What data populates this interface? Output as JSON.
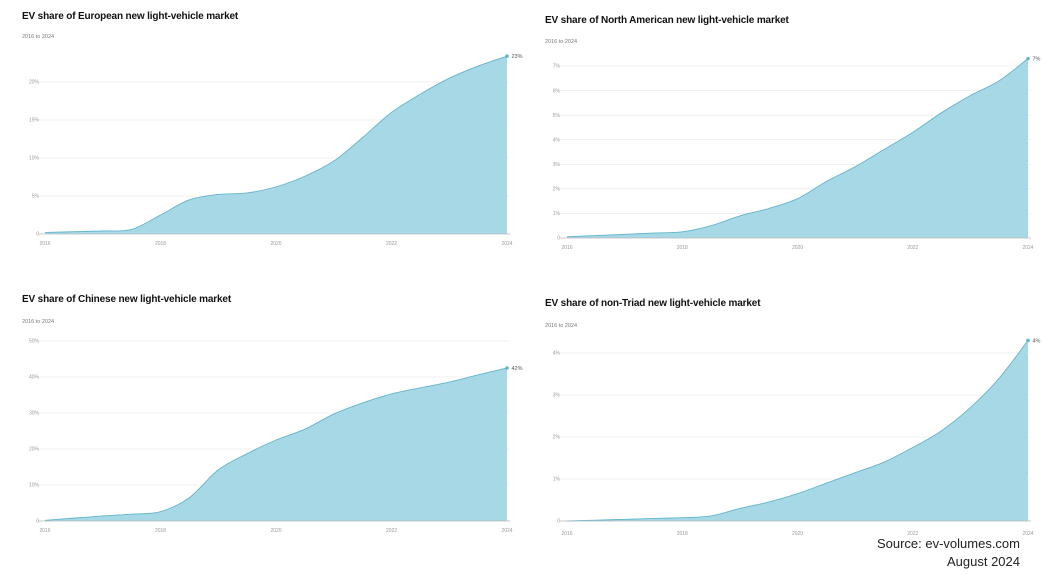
{
  "colors": {
    "area": "#a7d8e6",
    "line": "#62b5cd",
    "grid": "#e6e6e6",
    "axis": "#b9b9b9"
  },
  "chart_data": [
    {
      "type": "area",
      "title": "EV share of European new light-vehicle market",
      "subtitle": "2016 to 2024",
      "xlim": [
        2016,
        2024
      ],
      "x_ticks": [
        "2016",
        "2018",
        "2020",
        "2022",
        "2024"
      ],
      "y_ticks": [
        0,
        5,
        10,
        15,
        20
      ],
      "y_tick_labels": [
        "0",
        "5%",
        "10%",
        "15%",
        "20%"
      ],
      "ylim": [
        0,
        20
      ],
      "grid": true,
      "end_label": "23%",
      "series": [
        {
          "x": [
            2016,
            2016.5,
            2017,
            2017.5,
            2018,
            2018.5,
            2019,
            2019.5,
            2020,
            2020.5,
            2021,
            2021.5,
            2022,
            2022.5,
            2023,
            2023.5,
            2024
          ],
          "y": [
            0.2,
            0.3,
            0.4,
            0.6,
            2.5,
            4.5,
            5.2,
            5.4,
            6.2,
            7.6,
            9.6,
            12.7,
            16.0,
            18.4,
            20.5,
            22.1,
            23.4
          ]
        }
      ]
    },
    {
      "type": "area",
      "title": "EV share of North American new light-vehicle market",
      "subtitle": "2016 to 2024",
      "xlim": [
        2016,
        2024
      ],
      "x_ticks": [
        "2016",
        "2018",
        "2020",
        "2022",
        "2024"
      ],
      "y_ticks": [
        0,
        1,
        2,
        3,
        4,
        5,
        6,
        7
      ],
      "y_tick_labels": [
        "0",
        "1%",
        "2%",
        "3%",
        "4%",
        "5%",
        "6%",
        "7%"
      ],
      "ylim": [
        0,
        7
      ],
      "grid": true,
      "end_label": "7%",
      "series": [
        {
          "x": [
            2016,
            2016.5,
            2017,
            2017.5,
            2018,
            2018.5,
            2019,
            2019.5,
            2020,
            2020.5,
            2021,
            2021.5,
            2022,
            2022.5,
            2023,
            2023.5,
            2024
          ],
          "y": [
            0.05,
            0.1,
            0.15,
            0.2,
            0.25,
            0.5,
            0.9,
            1.2,
            1.6,
            2.3,
            2.9,
            3.6,
            4.3,
            5.1,
            5.8,
            6.4,
            7.3
          ]
        }
      ]
    },
    {
      "type": "area",
      "title": "EV share of Chinese new light-vehicle market",
      "subtitle": "2016 to 2024",
      "xlim": [
        2016,
        2024
      ],
      "x_ticks": [
        "2016",
        "2018",
        "2020",
        "2022",
        "2024"
      ],
      "y_ticks": [
        0,
        10,
        20,
        30,
        40,
        50
      ],
      "y_tick_labels": [
        "0",
        "10%",
        "20%",
        "30%",
        "40%",
        "50%"
      ],
      "ylim": [
        0,
        50
      ],
      "grid": true,
      "end_label": "42%",
      "series": [
        {
          "x": [
            2016,
            2016.5,
            2017,
            2017.5,
            2018,
            2018.5,
            2019,
            2019.5,
            2020,
            2020.5,
            2021,
            2021.5,
            2022,
            2022.5,
            2023,
            2023.5,
            2024
          ],
          "y": [
            0.2,
            0.8,
            1.4,
            1.9,
            2.6,
            6.5,
            14.2,
            18.7,
            22.5,
            25.5,
            29.7,
            32.8,
            35.3,
            37.0,
            38.6,
            40.6,
            42.5
          ]
        }
      ]
    },
    {
      "type": "area",
      "title": "EV share of non-Triad new light-vehicle market",
      "subtitle": "2016 to 2024",
      "xlim": [
        2016,
        2024
      ],
      "x_ticks": [
        "2016",
        "2018",
        "2020",
        "2022",
        "2024"
      ],
      "y_ticks": [
        0,
        1,
        2,
        3,
        4
      ],
      "y_tick_labels": [
        "0",
        "1%",
        "2%",
        "3%",
        "4%"
      ],
      "ylim": [
        0,
        4
      ],
      "grid": true,
      "end_label": "4%",
      "series": [
        {
          "x": [
            2016,
            2016.5,
            2017,
            2017.5,
            2018,
            2018.5,
            2019,
            2019.5,
            2020,
            2020.5,
            2021,
            2021.5,
            2022,
            2022.5,
            2023,
            2023.5,
            2024
          ],
          "y": [
            0.0,
            0.02,
            0.04,
            0.06,
            0.08,
            0.12,
            0.3,
            0.45,
            0.65,
            0.9,
            1.15,
            1.4,
            1.75,
            2.15,
            2.7,
            3.4,
            4.3
          ]
        }
      ]
    }
  ],
  "footer": {
    "source": "Source: ev-volumes.com",
    "date": "August 2024"
  }
}
